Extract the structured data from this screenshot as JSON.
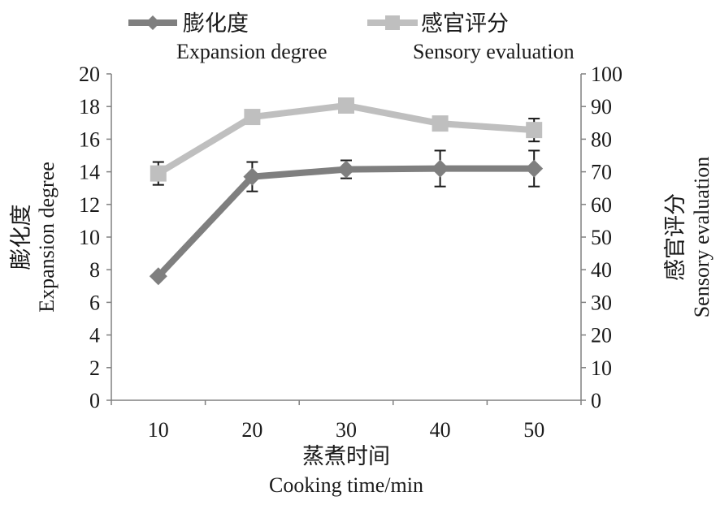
{
  "chart_data": {
    "type": "line",
    "x": [
      10,
      20,
      30,
      40,
      50
    ],
    "xlabel": "蒸煮时间",
    "xlabel_en": "Cooking time/min",
    "ylabel": "膨化度",
    "ylabel_en": "Expansion degree",
    "y2label": "感官评分",
    "y2label_en": "Sensory evaluation",
    "ylim": [
      0,
      20
    ],
    "y2lim": [
      0,
      100
    ],
    "yticks": [
      0,
      2,
      4,
      6,
      8,
      10,
      12,
      14,
      16,
      18,
      20
    ],
    "y2ticks": [
      0,
      10,
      20,
      30,
      40,
      50,
      60,
      70,
      80,
      90,
      100
    ],
    "grid": false,
    "legend": "top",
    "series": [
      {
        "name": "膨化度",
        "name_en": "Expansion degree",
        "axis": "left",
        "marker": "diamond",
        "color": "#7f7f7f",
        "values": [
          7.6,
          13.7,
          14.15,
          14.2,
          14.2
        ],
        "errors": [
          0,
          0.9,
          0.55,
          1.1,
          1.1
        ]
      },
      {
        "name": "感官评分",
        "name_en": "Sensory evaluation",
        "axis": "right",
        "marker": "square",
        "color": "#bfbfbf",
        "values": [
          69.5,
          86.8,
          90.3,
          84.8,
          82.8
        ],
        "errors": [
          3.5,
          0,
          0,
          0,
          3.5
        ]
      }
    ]
  }
}
